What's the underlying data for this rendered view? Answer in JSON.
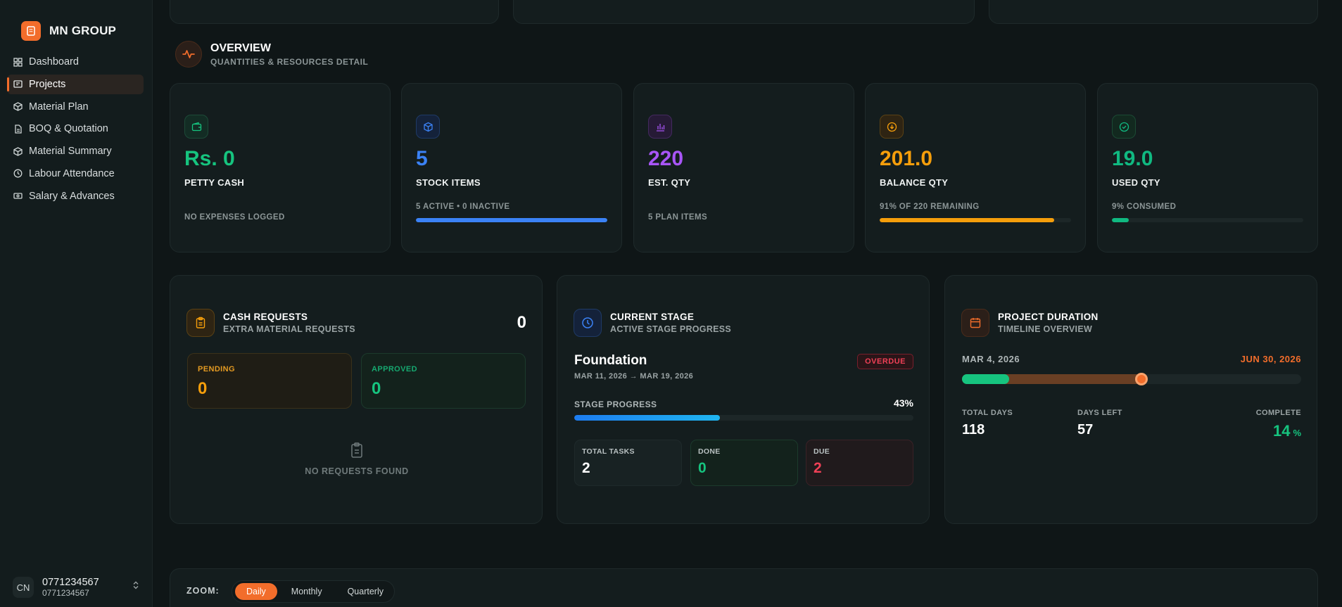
{
  "brand": {
    "name": "MN GROUP"
  },
  "nav": {
    "items": [
      {
        "label": "Dashboard",
        "icon": "dashboard-icon"
      },
      {
        "label": "Projects",
        "icon": "folder-icon",
        "active": true
      },
      {
        "label": "Material Plan",
        "icon": "box-icon"
      },
      {
        "label": "BOQ & Quotation",
        "icon": "document-icon"
      },
      {
        "label": "Material Summary",
        "icon": "box-icon"
      },
      {
        "label": "Labour Attendance",
        "icon": "clock-icon"
      },
      {
        "label": "Salary & Advances",
        "icon": "cash-icon"
      }
    ]
  },
  "user": {
    "initials": "CN",
    "name": "0771234567",
    "sub": "0771234567"
  },
  "overview": {
    "title": "OVERVIEW",
    "subtitle": "QUANTITIES & RESOURCES DETAIL"
  },
  "stats": [
    {
      "value": "Rs. 0",
      "label": "PETTY CASH",
      "note": "NO EXPENSES LOGGED",
      "color": "#16c47f",
      "icon": "wallet-icon"
    },
    {
      "value": "5",
      "label": "STOCK ITEMS",
      "note": "5 ACTIVE • 0 INACTIVE",
      "color": "#3b82f6",
      "icon": "cube-icon",
      "progress": 1.0
    },
    {
      "value": "220",
      "label": "EST. QTY",
      "note": "5 PLAN ITEMS",
      "color": "#a855f7",
      "icon": "bar-chart-icon"
    },
    {
      "value": "201.0",
      "label": "BALANCE QTY",
      "note": "91% OF 220 REMAINING",
      "color": "#f59e0b",
      "icon": "download-icon",
      "progress": 0.91
    },
    {
      "value": "19.0",
      "label": "USED QTY",
      "note": "9% CONSUMED",
      "color": "#10b981",
      "icon": "check-circle-icon",
      "progress": 0.09
    }
  ],
  "cash_requests": {
    "title": "CASH REQUESTS",
    "subtitle": "EXTRA MATERIAL REQUESTS",
    "count": "0",
    "pending_label": "PENDING",
    "pending_value": "0",
    "approved_label": "APPROVED",
    "approved_value": "0",
    "empty_text": "NO REQUESTS FOUND"
  },
  "current_stage": {
    "title": "CURRENT STAGE",
    "subtitle": "ACTIVE STAGE PROGRESS",
    "stage_name": "Foundation",
    "dates": "MAR 11, 2026 → MAR 19, 2026",
    "badge": "OVERDUE",
    "progress_label": "STAGE PROGRESS",
    "progress_text": "43%",
    "progress": 0.43,
    "tasks": [
      {
        "label": "TOTAL TASKS",
        "value": "2"
      },
      {
        "label": "DONE",
        "value": "0"
      },
      {
        "label": "DUE",
        "value": "2"
      }
    ]
  },
  "project_duration": {
    "title": "PROJECT DURATION",
    "subtitle": "TIMELINE OVERVIEW",
    "start": "MAR 4, 2026",
    "end": "JUN 30, 2026",
    "progress": 0.14,
    "elapsed_marker": 0.53,
    "total_days_label": "TOTAL DAYS",
    "total_days": "118",
    "days_left_label": "DAYS LEFT",
    "days_left": "57",
    "complete_label": "COMPLETE",
    "complete": "14",
    "complete_unit": "%"
  },
  "zoom": {
    "label": "ZOOM:",
    "options": [
      "Daily",
      "Monthly",
      "Quarterly"
    ],
    "selected": "Daily"
  }
}
